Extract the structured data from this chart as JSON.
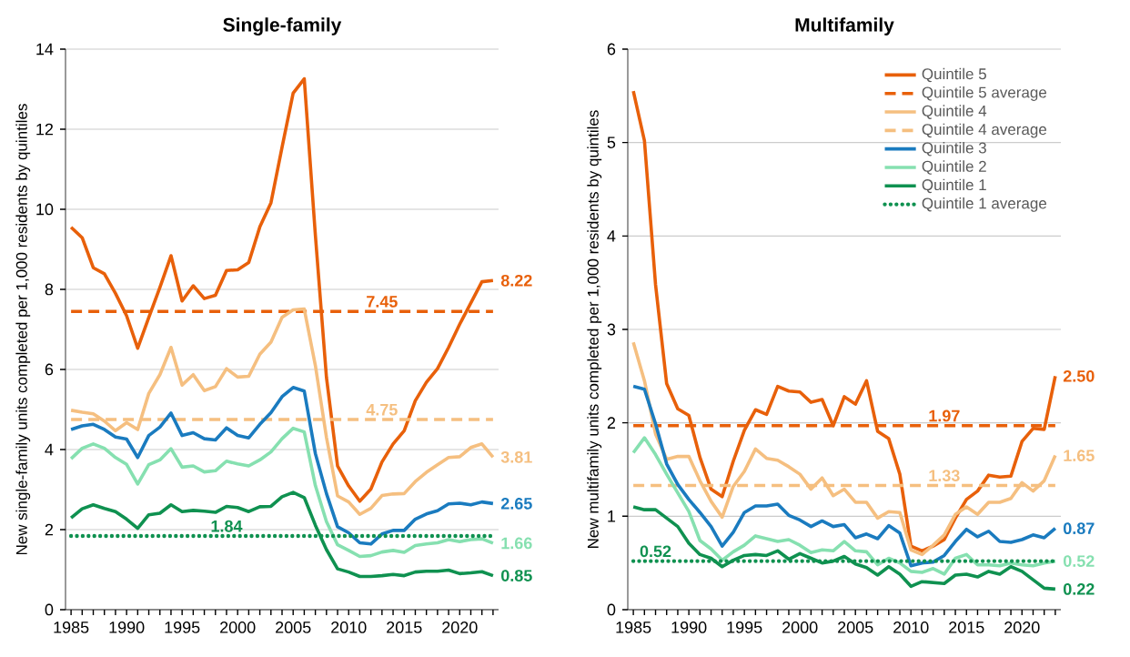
{
  "chart_data": [
    {
      "type": "line",
      "title": "Single-family",
      "ylabel": "New single-family units completed per 1,000 residents by quintiles",
      "x": [
        1985,
        1986,
        1987,
        1988,
        1989,
        1990,
        1991,
        1992,
        1993,
        1994,
        1995,
        1996,
        1997,
        1998,
        1999,
        2000,
        2001,
        2002,
        2003,
        2004,
        2005,
        2006,
        2007,
        2008,
        2009,
        2010,
        2011,
        2012,
        2013,
        2014,
        2015,
        2016,
        2017,
        2018,
        2019,
        2020,
        2021,
        2022,
        2023
      ],
      "xlim": [
        1984.5,
        2023.5
      ],
      "xticks": [
        1985,
        {
          "value": 1986,
          "label": null
        },
        {
          "value": 1987,
          "label": null
        },
        {
          "value": 1988,
          "label": null
        },
        {
          "value": 1989,
          "label": null
        },
        1990,
        {
          "value": 1991,
          "label": null
        },
        {
          "value": 1992,
          "label": null
        },
        {
          "value": 1993,
          "label": null
        },
        {
          "value": 1994,
          "label": null
        },
        1995,
        {
          "value": 1996,
          "label": null
        },
        {
          "value": 1997,
          "label": null
        },
        {
          "value": 1998,
          "label": null
        },
        {
          "value": 1999,
          "label": null
        },
        2000,
        {
          "value": 2001,
          "label": null
        },
        {
          "value": 2002,
          "label": null
        },
        {
          "value": 2003,
          "label": null
        },
        {
          "value": 2004,
          "label": null
        },
        2005,
        {
          "value": 2006,
          "label": null
        },
        {
          "value": 2007,
          "label": null
        },
        {
          "value": 2008,
          "label": null
        },
        {
          "value": 2009,
          "label": null
        },
        2010,
        {
          "value": 2011,
          "label": null
        },
        {
          "value": 2012,
          "label": null
        },
        {
          "value": 2013,
          "label": null
        },
        {
          "value": 2014,
          "label": null
        },
        2015,
        {
          "value": 2016,
          "label": null
        },
        {
          "value": 2017,
          "label": null
        },
        {
          "value": 2018,
          "label": null
        },
        {
          "value": 2019,
          "label": null
        },
        2020,
        {
          "value": 2021,
          "label": null
        },
        {
          "value": 2022,
          "label": null
        },
        {
          "value": 2023,
          "label": null
        }
      ],
      "ylim": [
        0,
        14
      ],
      "yticks": [
        0,
        2,
        4,
        6,
        8,
        10,
        12,
        14
      ],
      "grid": "y",
      "marker": "none",
      "series": [
        {
          "color": "#e8600a",
          "values": [
            9.55,
            9.29,
            8.54,
            8.39,
            7.9,
            7.34,
            6.53,
            7.3,
            8.05,
            8.84,
            7.71,
            8.09,
            7.77,
            7.85,
            8.47,
            8.49,
            8.67,
            9.56,
            10.16,
            11.55,
            12.9,
            13.26,
            9.36,
            5.8,
            3.59,
            3.09,
            2.71,
            3.01,
            3.69,
            4.14,
            4.47,
            5.22,
            5.68,
            6.02,
            6.55,
            7.13,
            7.66,
            8.19,
            8.22
          ]
        },
        {
          "color": "#e8600a",
          "line_style": "dashed",
          "values": [
            7.45,
            7.45,
            7.45,
            7.45,
            7.45,
            7.45,
            7.45,
            7.45,
            7.45,
            7.45,
            7.45,
            7.45,
            7.45,
            7.45,
            7.45,
            7.45,
            7.45,
            7.45,
            7.45,
            7.45,
            7.45,
            7.45,
            7.45,
            7.45,
            7.45,
            7.45,
            7.45,
            7.45,
            7.45,
            7.45,
            7.45,
            7.45,
            7.45,
            7.45,
            7.45,
            7.45,
            7.45,
            7.45,
            7.45
          ]
        },
        {
          "color": "#f5bf80",
          "values": [
            4.98,
            4.93,
            4.89,
            4.71,
            4.47,
            4.67,
            4.5,
            5.4,
            5.87,
            6.55,
            5.61,
            5.87,
            5.47,
            5.57,
            6.02,
            5.81,
            5.83,
            6.38,
            6.68,
            7.3,
            7.49,
            7.51,
            6.1,
            4.3,
            2.84,
            2.69,
            2.38,
            2.53,
            2.85,
            2.89,
            2.9,
            3.2,
            3.43,
            3.62,
            3.8,
            3.82,
            4.05,
            4.14,
            3.81
          ]
        },
        {
          "color": "#f5bf80",
          "line_style": "dashed",
          "values": [
            4.75,
            4.75,
            4.75,
            4.75,
            4.75,
            4.75,
            4.75,
            4.75,
            4.75,
            4.75,
            4.75,
            4.75,
            4.75,
            4.75,
            4.75,
            4.75,
            4.75,
            4.75,
            4.75,
            4.75,
            4.75,
            4.75,
            4.75,
            4.75,
            4.75,
            4.75,
            4.75,
            4.75,
            4.75,
            4.75,
            4.75,
            4.75,
            4.75,
            4.75,
            4.75,
            4.75,
            4.75,
            4.75,
            4.75
          ]
        },
        {
          "color": "#1a7bbf",
          "values": [
            4.5,
            4.59,
            4.63,
            4.5,
            4.31,
            4.26,
            3.8,
            4.35,
            4.56,
            4.91,
            4.35,
            4.42,
            4.27,
            4.24,
            4.54,
            4.35,
            4.29,
            4.63,
            4.92,
            5.32,
            5.55,
            5.46,
            3.9,
            2.9,
            2.07,
            1.92,
            1.67,
            1.64,
            1.89,
            1.98,
            1.98,
            2.26,
            2.39,
            2.47,
            2.64,
            2.66,
            2.62,
            2.69,
            2.65
          ]
        },
        {
          "color": "#86e0b0",
          "values": [
            3.77,
            4.03,
            4.14,
            4.03,
            3.8,
            3.63,
            3.14,
            3.62,
            3.74,
            4.02,
            3.56,
            3.59,
            3.44,
            3.47,
            3.71,
            3.64,
            3.59,
            3.74,
            3.94,
            4.27,
            4.53,
            4.44,
            3.1,
            2.2,
            1.62,
            1.48,
            1.33,
            1.35,
            1.44,
            1.48,
            1.43,
            1.6,
            1.64,
            1.67,
            1.75,
            1.7,
            1.75,
            1.77,
            1.66
          ]
        },
        {
          "color": "#0f9150",
          "values": [
            2.29,
            2.52,
            2.62,
            2.53,
            2.45,
            2.26,
            2.03,
            2.37,
            2.41,
            2.62,
            2.45,
            2.48,
            2.46,
            2.43,
            2.58,
            2.55,
            2.45,
            2.57,
            2.58,
            2.82,
            2.93,
            2.8,
            2.11,
            1.5,
            1.02,
            0.94,
            0.83,
            0.83,
            0.85,
            0.88,
            0.85,
            0.94,
            0.96,
            0.96,
            0.99,
            0.9,
            0.92,
            0.95,
            0.85
          ]
        },
        {
          "color": "#0f9150",
          "line_style": "dotted",
          "values": [
            1.84,
            1.84,
            1.84,
            1.84,
            1.84,
            1.84,
            1.84,
            1.84,
            1.84,
            1.84,
            1.84,
            1.84,
            1.84,
            1.84,
            1.84,
            1.84,
            1.84,
            1.84,
            1.84,
            1.84,
            1.84,
            1.84,
            1.84,
            1.84,
            1.84,
            1.84,
            1.84,
            1.84,
            1.84,
            1.84,
            1.84,
            1.84,
            1.84,
            1.84,
            1.84,
            1.84,
            1.84,
            1.84,
            1.84
          ]
        }
      ],
      "annotations": [
        {
          "text": "7.45",
          "x": 2013,
          "y": 7.45
        },
        {
          "text": "4.75",
          "x": 2013,
          "y": 4.75
        },
        {
          "text": "1.84",
          "x": 1999,
          "y": 1.84
        },
        {
          "text": "8.22",
          "x": 2023,
          "y": 8.22
        },
        {
          "text": "3.81",
          "x": 2023,
          "y": 3.81
        },
        {
          "text": "2.65",
          "x": 2023,
          "y": 2.65
        },
        {
          "text": "1.66",
          "x": 2023,
          "y": 1.66
        },
        {
          "text": "0.85",
          "x": 2023,
          "y": 0.85
        }
      ]
    },
    {
      "type": "line",
      "title": "Multifamily",
      "ylabel": "New multifamily units completed per 1,000 residents by quintiles",
      "x": [
        1985,
        1986,
        1987,
        1988,
        1989,
        1990,
        1991,
        1992,
        1993,
        1994,
        1995,
        1996,
        1997,
        1998,
        1999,
        2000,
        2001,
        2002,
        2003,
        2004,
        2005,
        2006,
        2007,
        2008,
        2009,
        2010,
        2011,
        2012,
        2013,
        2014,
        2015,
        2016,
        2017,
        2018,
        2019,
        2020,
        2021,
        2022,
        2023
      ],
      "xlim": [
        1984.5,
        2023.5
      ],
      "xticks": [
        1985,
        {
          "value": 1986,
          "label": null
        },
        {
          "value": 1987,
          "label": null
        },
        {
          "value": 1988,
          "label": null
        },
        {
          "value": 1989,
          "label": null
        },
        1990,
        {
          "value": 1991,
          "label": null
        },
        {
          "value": 1992,
          "label": null
        },
        {
          "value": 1993,
          "label": null
        },
        {
          "value": 1994,
          "label": null
        },
        1995,
        {
          "value": 1996,
          "label": null
        },
        {
          "value": 1997,
          "label": null
        },
        {
          "value": 1998,
          "label": null
        },
        {
          "value": 1999,
          "label": null
        },
        2000,
        {
          "value": 2001,
          "label": null
        },
        {
          "value": 2002,
          "label": null
        },
        {
          "value": 2003,
          "label": null
        },
        {
          "value": 2004,
          "label": null
        },
        2005,
        {
          "value": 2006,
          "label": null
        },
        {
          "value": 2007,
          "label": null
        },
        {
          "value": 2008,
          "label": null
        },
        {
          "value": 2009,
          "label": null
        },
        2010,
        {
          "value": 2011,
          "label": null
        },
        {
          "value": 2012,
          "label": null
        },
        {
          "value": 2013,
          "label": null
        },
        {
          "value": 2014,
          "label": null
        },
        2015,
        {
          "value": 2016,
          "label": null
        },
        {
          "value": 2017,
          "label": null
        },
        {
          "value": 2018,
          "label": null
        },
        {
          "value": 2019,
          "label": null
        },
        2020,
        {
          "value": 2021,
          "label": null
        },
        {
          "value": 2022,
          "label": null
        },
        {
          "value": 2023,
          "label": null
        }
      ],
      "ylim": [
        0,
        6
      ],
      "yticks": [
        0,
        1,
        2,
        3,
        4,
        5,
        6
      ],
      "grid": "y",
      "marker": "none",
      "legend": "top right",
      "series": [
        {
          "name": "Quintile 5",
          "color": "#e8600a",
          "values": [
            5.55,
            5.02,
            3.48,
            2.42,
            2.15,
            2.08,
            1.63,
            1.29,
            1.21,
            1.59,
            1.92,
            2.14,
            2.09,
            2.39,
            2.34,
            2.33,
            2.22,
            2.25,
            1.97,
            2.28,
            2.2,
            2.45,
            1.91,
            1.83,
            1.45,
            0.68,
            0.63,
            0.68,
            0.75,
            0.98,
            1.18,
            1.27,
            1.44,
            1.42,
            1.43,
            1.8,
            1.94,
            1.93,
            2.5
          ]
        },
        {
          "name": "Quintile 5 average",
          "color": "#e8600a",
          "line_style": "dashed",
          "values": [
            1.97,
            1.97,
            1.97,
            1.97,
            1.97,
            1.97,
            1.97,
            1.97,
            1.97,
            1.97,
            1.97,
            1.97,
            1.97,
            1.97,
            1.97,
            1.97,
            1.97,
            1.97,
            1.97,
            1.97,
            1.97,
            1.97,
            1.97,
            1.97,
            1.97,
            1.97,
            1.97,
            1.97,
            1.97,
            1.97,
            1.97,
            1.97,
            1.97,
            1.97,
            1.97,
            1.97,
            1.97,
            1.97,
            1.97
          ]
        },
        {
          "name": "Quintile 4",
          "color": "#f5bf80",
          "values": [
            2.86,
            2.45,
            1.88,
            1.61,
            1.64,
            1.64,
            1.38,
            1.16,
            0.99,
            1.32,
            1.48,
            1.72,
            1.62,
            1.6,
            1.53,
            1.45,
            1.29,
            1.41,
            1.22,
            1.29,
            1.15,
            1.15,
            0.98,
            1.05,
            1.04,
            0.64,
            0.59,
            0.69,
            0.8,
            1.02,
            1.1,
            1.02,
            1.15,
            1.15,
            1.19,
            1.36,
            1.27,
            1.38,
            1.65
          ]
        },
        {
          "name": "Quintile 4 average",
          "color": "#f5bf80",
          "line_style": "dashed",
          "values": [
            1.33,
            1.33,
            1.33,
            1.33,
            1.33,
            1.33,
            1.33,
            1.33,
            1.33,
            1.33,
            1.33,
            1.33,
            1.33,
            1.33,
            1.33,
            1.33,
            1.33,
            1.33,
            1.33,
            1.33,
            1.33,
            1.33,
            1.33,
            1.33,
            1.33,
            1.33,
            1.33,
            1.33,
            1.33,
            1.33,
            1.33,
            1.33,
            1.33,
            1.33,
            1.33,
            1.33,
            1.33,
            1.33,
            1.33
          ]
        },
        {
          "name": "Quintile 3",
          "color": "#1a7bbf",
          "values": [
            2.39,
            2.36,
            1.99,
            1.56,
            1.34,
            1.18,
            1.04,
            0.89,
            0.68,
            0.83,
            1.04,
            1.11,
            1.11,
            1.13,
            1.01,
            0.96,
            0.89,
            0.95,
            0.89,
            0.91,
            0.77,
            0.81,
            0.76,
            0.9,
            0.82,
            0.47,
            0.5,
            0.51,
            0.58,
            0.73,
            0.86,
            0.78,
            0.84,
            0.73,
            0.72,
            0.75,
            0.8,
            0.77,
            0.87
          ]
        },
        {
          "name": "Quintile 2",
          "color": "#86e0b0",
          "values": [
            1.68,
            1.84,
            1.66,
            1.45,
            1.25,
            1.05,
            0.74,
            0.65,
            0.53,
            0.62,
            0.69,
            0.79,
            0.76,
            0.73,
            0.75,
            0.69,
            0.61,
            0.64,
            0.63,
            0.73,
            0.63,
            0.62,
            0.48,
            0.55,
            0.5,
            0.41,
            0.4,
            0.44,
            0.38,
            0.55,
            0.59,
            0.48,
            0.48,
            0.47,
            0.5,
            0.48,
            0.47,
            0.5,
            0.52
          ]
        },
        {
          "name": "Quintile 1",
          "color": "#0f9150",
          "values": [
            1.1,
            1.07,
            1.07,
            0.98,
            0.89,
            0.71,
            0.59,
            0.55,
            0.46,
            0.53,
            0.58,
            0.59,
            0.58,
            0.63,
            0.54,
            0.6,
            0.55,
            0.5,
            0.52,
            0.57,
            0.49,
            0.45,
            0.37,
            0.46,
            0.38,
            0.25,
            0.3,
            0.29,
            0.28,
            0.37,
            0.38,
            0.35,
            0.41,
            0.38,
            0.46,
            0.41,
            0.32,
            0.23,
            0.22
          ]
        },
        {
          "name": "Quintile 1 average",
          "color": "#0f9150",
          "line_style": "dotted",
          "values": [
            0.52,
            0.52,
            0.52,
            0.52,
            0.52,
            0.52,
            0.52,
            0.52,
            0.52,
            0.52,
            0.52,
            0.52,
            0.52,
            0.52,
            0.52,
            0.52,
            0.52,
            0.52,
            0.52,
            0.52,
            0.52,
            0.52,
            0.52,
            0.52,
            0.52,
            0.52,
            0.52,
            0.52,
            0.52,
            0.52,
            0.52,
            0.52,
            0.52,
            0.52,
            0.52,
            0.52,
            0.52,
            0.52,
            0.52
          ]
        }
      ],
      "annotations": [
        {
          "text": "1.97",
          "x": 2013,
          "y": 1.97
        },
        {
          "text": "1.33",
          "x": 2013,
          "y": 1.33
        },
        {
          "text": "0.52",
          "x": 1987,
          "y": 0.52
        },
        {
          "text": "2.50",
          "x": 2023,
          "y": 2.5
        },
        {
          "text": "1.65",
          "x": 2023,
          "y": 1.65
        },
        {
          "text": "0.87",
          "x": 2023,
          "y": 0.87
        },
        {
          "text": "0.52",
          "x": 2023,
          "y": 0.52
        },
        {
          "text": "0.22",
          "x": 2023,
          "y": 0.22
        }
      ]
    }
  ]
}
